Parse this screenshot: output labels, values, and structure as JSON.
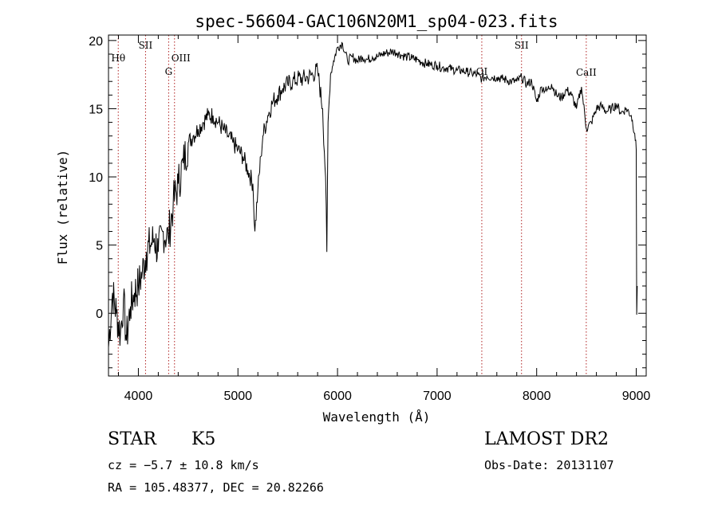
{
  "chart_data": {
    "type": "line",
    "title": "spec-56604-GAC106N20M1_sp04-023.fits",
    "xlabel": "Wavelength (Å)",
    "ylabel": "Flux (relative)",
    "xlim": [
      3700,
      9100
    ],
    "ylim": [
      -4.6,
      20.4
    ],
    "xticks": [
      {
        "value": 4000,
        "label": "4000"
      },
      {
        "value": 5000,
        "label": "5000"
      },
      {
        "value": 6000,
        "label": "6000"
      },
      {
        "value": 7000,
        "label": "7000"
      },
      {
        "value": 8000,
        "label": "8000"
      },
      {
        "value": 9000,
        "label": "9000"
      }
    ],
    "yticks": [
      {
        "value": 0,
        "label": "0"
      },
      {
        "value": 5,
        "label": "5"
      },
      {
        "value": 10,
        "label": "10"
      },
      {
        "value": 15,
        "label": "15"
      },
      {
        "value": 20,
        "label": "20"
      }
    ],
    "lines": [
      {
        "label": "Hθ",
        "wavelength": 3798
      },
      {
        "label": "SII",
        "wavelength": 4072
      },
      {
        "label": "OIII",
        "wavelength": 4363
      },
      {
        "label": "G",
        "wavelength": 4304
      },
      {
        "label": "OI",
        "wavelength": 7449
      },
      {
        "label": "SII",
        "wavelength": 7848
      },
      {
        "label": "CaII",
        "wavelength": 8498
      }
    ],
    "series": [
      {
        "name": "",
        "x": [
          3700,
          3740,
          3780,
          3820,
          3850,
          3880,
          3920,
          3960,
          4000,
          4040,
          4080,
          4120,
          4160,
          4200,
          4250,
          4300,
          4350,
          4400,
          4450,
          4500,
          4550,
          4600,
          4650,
          4700,
          4750,
          4800,
          4850,
          4900,
          4950,
          5000,
          5050,
          5100,
          5150,
          5170,
          5200,
          5230,
          5250,
          5300,
          5350,
          5400,
          5450,
          5500,
          5550,
          5600,
          5650,
          5700,
          5750,
          5800,
          5850,
          5880,
          5893,
          5905,
          5930,
          5960,
          6000,
          6050,
          6100,
          6150,
          6200,
          6250,
          6300,
          6350,
          6400,
          6450,
          6500,
          6550,
          6600,
          6650,
          6700,
          6750,
          6800,
          6850,
          6900,
          6950,
          7000,
          7050,
          7100,
          7150,
          7200,
          7250,
          7300,
          7350,
          7400,
          7450,
          7500,
          7550,
          7600,
          7650,
          7700,
          7750,
          7800,
          7850,
          7900,
          7950,
          8000,
          8050,
          8100,
          8150,
          8200,
          8250,
          8300,
          8350,
          8400,
          8450,
          8500,
          8550,
          8600,
          8650,
          8700,
          8750,
          8800,
          8850,
          8900,
          8950,
          8985,
          9000,
          9005,
          9010
        ],
        "y": [
          -2.5,
          1.5,
          0.0,
          -1.5,
          1.0,
          -2.0,
          0.5,
          1.5,
          2.0,
          3.0,
          4.5,
          5.0,
          5.5,
          4.5,
          6.0,
          5.5,
          8.0,
          9.5,
          11.0,
          12.5,
          13.0,
          13.5,
          14.0,
          14.5,
          14.5,
          14.0,
          13.5,
          13.0,
          12.5,
          12.0,
          11.5,
          10.5,
          9.5,
          6.0,
          9.0,
          11.5,
          13.0,
          14.5,
          15.5,
          16.0,
          16.5,
          16.8,
          17.0,
          17.2,
          17.2,
          17.3,
          17.5,
          17.8,
          15.0,
          10.0,
          4.5,
          14.0,
          17.5,
          18.5,
          19.5,
          19.8,
          18.5,
          18.8,
          18.5,
          18.8,
          18.6,
          18.8,
          18.8,
          19.0,
          19.1,
          19.2,
          19.1,
          18.9,
          18.8,
          18.7,
          18.6,
          18.4,
          18.3,
          18.2,
          18.2,
          18.0,
          18.0,
          17.9,
          17.8,
          17.8,
          17.7,
          17.6,
          17.5,
          17.2,
          17.4,
          17.3,
          17.3,
          17.2,
          17.1,
          17.0,
          17.0,
          17.3,
          16.8,
          17.0,
          15.5,
          16.6,
          16.3,
          16.8,
          16.0,
          15.8,
          16.4,
          16.0,
          15.0,
          16.6,
          13.5,
          14.0,
          15.0,
          15.2,
          14.8,
          15.0,
          15.3,
          14.7,
          15.0,
          14.5,
          13.2,
          12.0,
          -0.1,
          2.0
        ]
      }
    ]
  },
  "footer": {
    "class_label": "STAR",
    "subclass_label": "K5",
    "velocity_text": "cz = −5.7 ± 10.8 km/s",
    "coords_text": "RA = 105.48377, DEC =  20.82266",
    "survey_label": "LAMOST DR2",
    "obs_date_text": "Obs-Date: 20131107"
  }
}
